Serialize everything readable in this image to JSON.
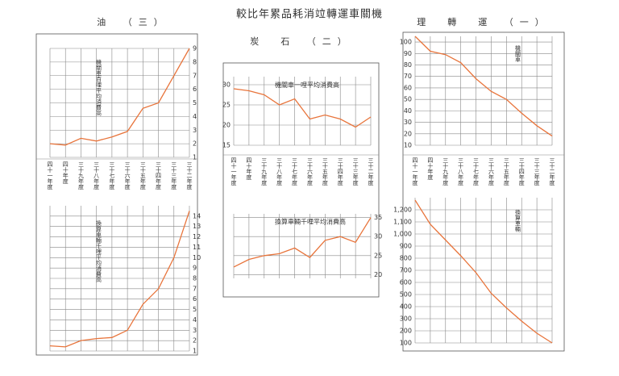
{
  "title": "較比年累品耗消竝轉運車關機",
  "chart_data": [
    {
      "type": "line",
      "title": "油　（三）",
      "categories": [
        "四十一年度",
        "四十年度",
        "三十九年度",
        "三十八年度",
        "三十七年度",
        "三十六年度",
        "三十五年度",
        "三十四年度",
        "三十三年度",
        "三十二年度"
      ],
      "charts": [
        {
          "label": "機關車百哩平均消費高",
          "color": "#e8743b",
          "values": [
            2.0,
            1.9,
            2.4,
            2.2,
            2.5,
            2.9,
            4.6,
            5.0,
            7.0,
            9.0
          ],
          "ylim": [
            1,
            9
          ],
          "yticks": [
            1,
            2,
            3,
            4,
            5,
            6,
            7,
            8,
            9
          ],
          "ytick_side": "right"
        },
        {
          "label": "換算車輛千哩平均消費高",
          "color": "#e8743b",
          "values": [
            1.5,
            1.4,
            2.0,
            2.2,
            2.3,
            3.0,
            5.5,
            7.0,
            10.0,
            14.5
          ],
          "ylim": [
            1,
            15
          ],
          "yticks": [
            1,
            2,
            3,
            4,
            5,
            6,
            7,
            8,
            9,
            10,
            11,
            12,
            13,
            14
          ],
          "ytick_side": "right"
        }
      ]
    },
    {
      "type": "line",
      "title": "炭　石　（二）",
      "categories": [
        "四十一年度",
        "四十年度",
        "三十九年度",
        "三十八年度",
        "三十七年度",
        "三十六年度",
        "三十五年度",
        "三十四年度",
        "三十三年度",
        "三十二年度"
      ],
      "charts": [
        {
          "label": "機關車一哩平均消費高",
          "color": "#e8743b",
          "values": [
            29,
            28.5,
            27.5,
            25,
            26.5,
            21.5,
            22.5,
            21.5,
            19.5,
            22
          ],
          "ylim": [
            15,
            32
          ],
          "yticks": [
            15,
            20,
            25,
            30
          ],
          "ytick_side": "left"
        },
        {
          "label": "換算車輛千哩平均消費高",
          "color": "#e8743b",
          "values": [
            22,
            24,
            25,
            25.5,
            27,
            24.5,
            29,
            30,
            28.5,
            35
          ],
          "ylim": [
            19,
            36
          ],
          "yticks": [
            20,
            25,
            30,
            35
          ],
          "ytick_side": "right"
        }
      ]
    },
    {
      "type": "line",
      "title": "理　轉　運　（一）",
      "categories": [
        "四十一年度",
        "四十年度",
        "三十九年度",
        "三十八年度",
        "三十七年度",
        "三十六年度",
        "三十五年度",
        "三十四年度",
        "三十三年度",
        "三十二年度"
      ],
      "charts": [
        {
          "label": "機關車",
          "color": "#e8743b",
          "values": [
            105,
            92,
            89,
            82,
            68,
            57,
            50,
            38,
            27,
            18
          ],
          "ylim": [
            10,
            105
          ],
          "yticks": [
            10,
            20,
            30,
            40,
            50,
            60,
            70,
            80,
            90,
            100
          ],
          "ytick_side": "left"
        },
        {
          "label": "換算車輛",
          "color": "#e8743b",
          "values": [
            1280,
            1080,
            950,
            820,
            680,
            510,
            390,
            280,
            180,
            100
          ],
          "ylim": [
            100,
            1300
          ],
          "yticks": [
            100,
            200,
            300,
            400,
            500,
            600,
            700,
            800,
            900,
            {
              "value": 1000,
              "label": "1,000"
            },
            {
              "value": 1100,
              "label": "1,100"
            },
            {
              "value": 1200,
              "label": "1,200"
            }
          ],
          "ytick_side": "left"
        }
      ]
    }
  ]
}
